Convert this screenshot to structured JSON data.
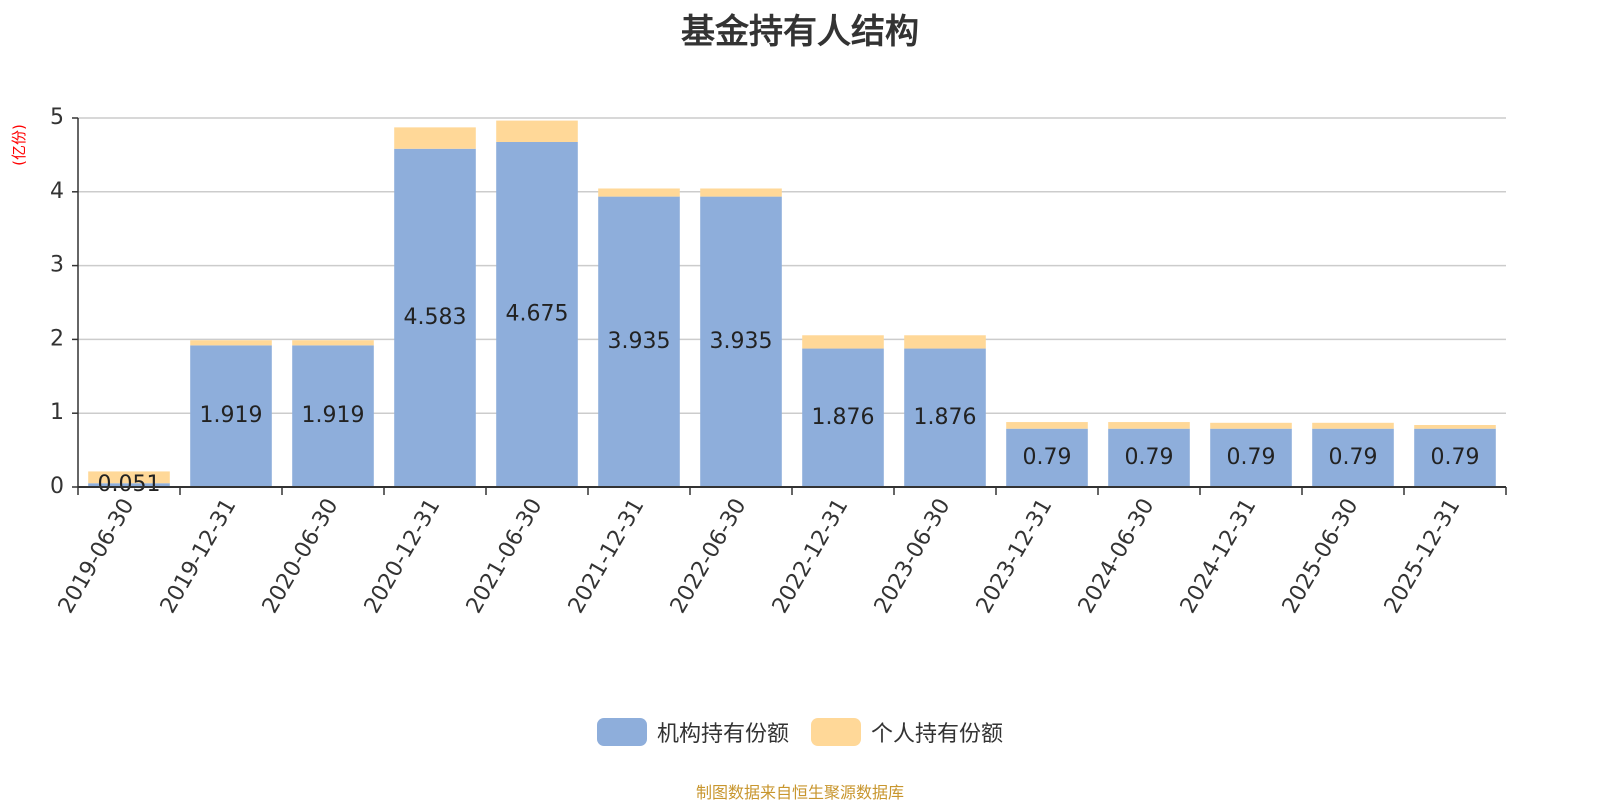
{
  "chart_data": {
    "type": "bar",
    "stacked": true,
    "title": "基金持有人结构",
    "ylabel": "(亿份)",
    "xlabel": "",
    "ylim": [
      0,
      5
    ],
    "yticks": [
      0,
      1,
      2,
      3,
      4,
      5
    ],
    "grid": true,
    "legend_position": "bottom",
    "categories": [
      "2019-06-30",
      "2019-12-31",
      "2020-06-30",
      "2020-12-31",
      "2021-06-30",
      "2021-12-31",
      "2022-06-30",
      "2022-12-31",
      "2023-06-30",
      "2023-12-31",
      "2024-06-30",
      "2024-12-31",
      "2025-06-30",
      "2025-12-31"
    ],
    "series": [
      {
        "name": "机构持有份额",
        "color": "#8eaedb",
        "values": [
          0.051,
          1.919,
          1.919,
          4.583,
          4.675,
          3.935,
          3.935,
          1.876,
          1.876,
          0.79,
          0.79,
          0.79,
          0.79,
          0.79
        ],
        "labels": [
          "0.051",
          "1.919",
          "1.919",
          "4.583",
          "4.675",
          "3.935",
          "3.935",
          "1.876",
          "1.876",
          "0.79",
          "0.79",
          "0.79",
          "0.79",
          "0.79"
        ]
      },
      {
        "name": "个人持有份额",
        "color": "#ffd898",
        "values": [
          0.16,
          0.07,
          0.07,
          0.29,
          0.29,
          0.11,
          0.11,
          0.18,
          0.18,
          0.09,
          0.09,
          0.08,
          0.08,
          0.05
        ]
      }
    ]
  },
  "footer": {
    "source": "制图数据来自恒生聚源数据库"
  }
}
